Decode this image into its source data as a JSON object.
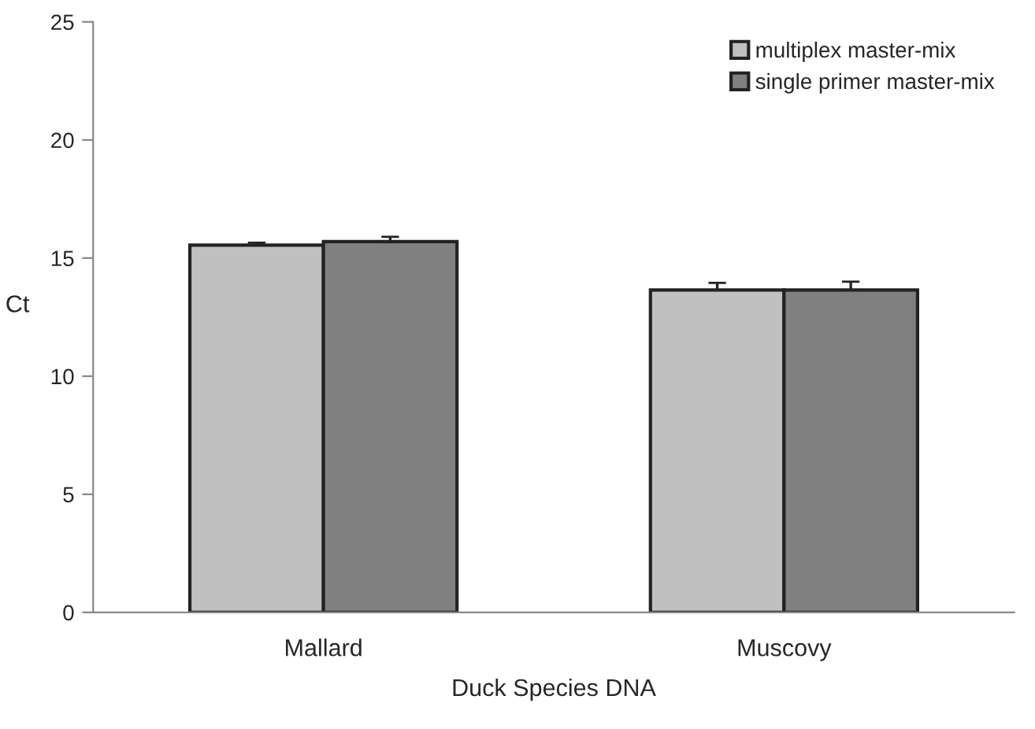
{
  "chart_data": {
    "type": "bar",
    "xlabel": "Duck Species DNA",
    "ylabel": "Ct",
    "categories": [
      "Mallard",
      "Muscovy"
    ],
    "series": [
      {
        "name": "multiplex master-mix",
        "color": "#c0c0c0",
        "values": [
          15.55,
          13.65
        ],
        "errors": [
          0.1,
          0.3
        ]
      },
      {
        "name": "single primer master-mix",
        "color": "#808080",
        "values": [
          15.7,
          13.65
        ],
        "errors": [
          0.2,
          0.35
        ]
      }
    ],
    "ylim": [
      0,
      25
    ],
    "yticks": [
      0,
      5,
      10,
      15,
      20,
      25
    ],
    "grid": false,
    "legend": "top right"
  }
}
